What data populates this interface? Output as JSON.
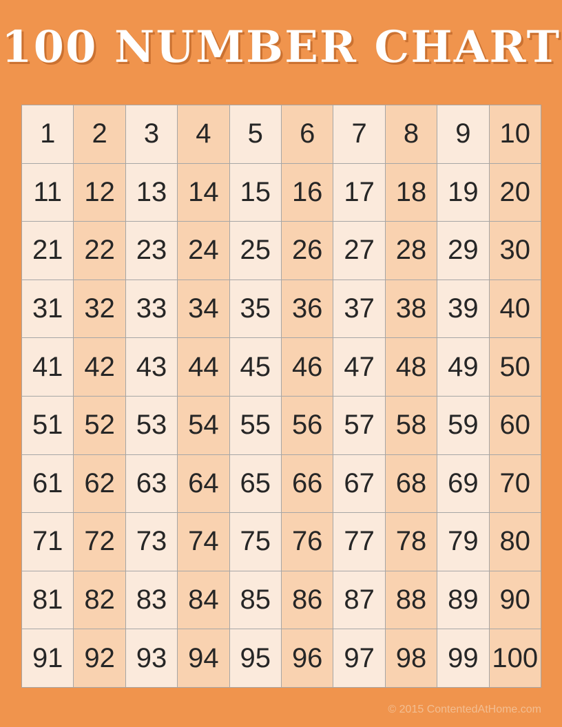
{
  "page": {
    "title": "100 NUMBER CHART",
    "footer": "© 2015 ContentedAtHome.com"
  },
  "grid": {
    "rows": 10,
    "cols": 10,
    "numbers": [
      1,
      2,
      3,
      4,
      5,
      6,
      7,
      8,
      9,
      10,
      11,
      12,
      13,
      14,
      15,
      16,
      17,
      18,
      19,
      20,
      21,
      22,
      23,
      24,
      25,
      26,
      27,
      28,
      29,
      30,
      31,
      32,
      33,
      34,
      35,
      36,
      37,
      38,
      39,
      40,
      41,
      42,
      43,
      44,
      45,
      46,
      47,
      48,
      49,
      50,
      51,
      52,
      53,
      54,
      55,
      56,
      57,
      58,
      59,
      60,
      61,
      62,
      63,
      64,
      65,
      66,
      67,
      68,
      69,
      70,
      71,
      72,
      73,
      74,
      75,
      76,
      77,
      78,
      79,
      80,
      81,
      82,
      83,
      84,
      85,
      86,
      87,
      88,
      89,
      90,
      91,
      92,
      93,
      94,
      95,
      96,
      97,
      98,
      99,
      100
    ]
  },
  "colors": {
    "background": "#F0944D",
    "title_text": "#FFFFFF",
    "cell_light": "#FBEADC",
    "cell_dark": "#F9D2B0",
    "grid_border": "#A6A6A6",
    "number_text": "#262626",
    "footer_text": "#F2BE92"
  }
}
